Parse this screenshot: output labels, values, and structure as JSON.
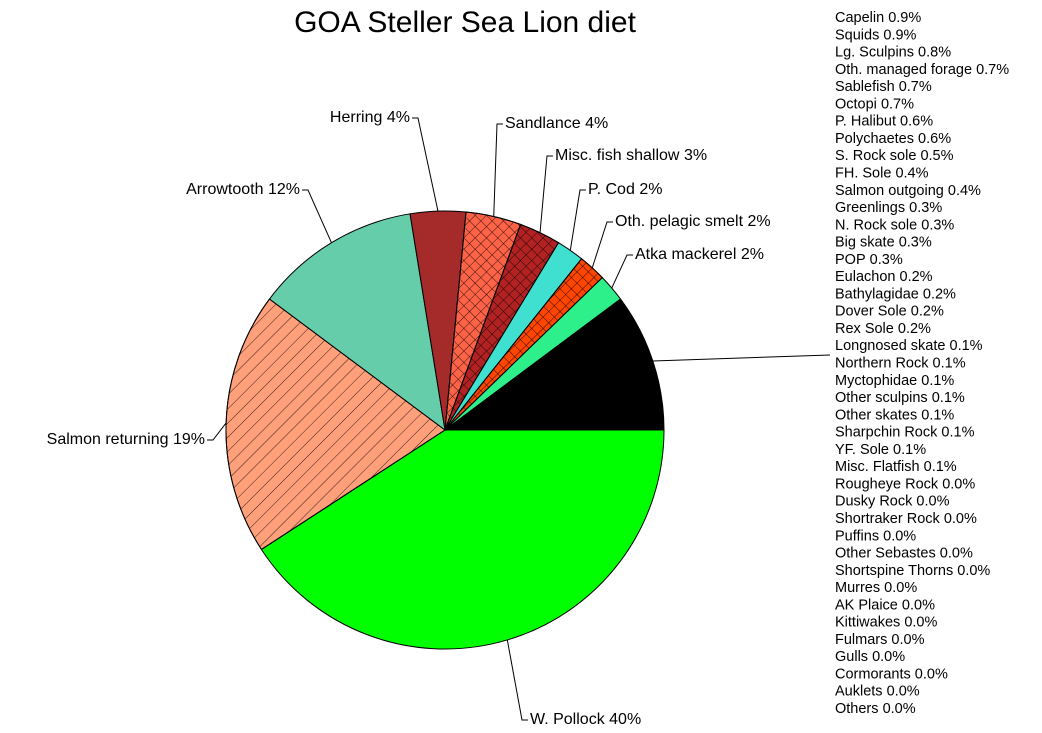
{
  "chart_data": {
    "type": "pie",
    "title": "GOA Steller Sea Lion diet",
    "categories": [
      "W. Pollock",
      "Salmon returning",
      "Arrowtooth",
      "Herring",
      "Sandlance",
      "Misc. fish shallow",
      "P. Cod",
      "Oth. pelagic smelt",
      "Atka mackerel"
    ],
    "values": [
      40,
      19,
      12,
      4,
      4,
      3,
      2,
      2,
      2
    ],
    "value_labels": [
      "40%",
      "19%",
      "12%",
      "4%",
      "4%",
      "3%",
      "2%",
      "2%",
      "2%"
    ],
    "colors": [
      "#00ff00",
      "#ffa07a",
      "#66cdaa",
      "#a52a2a",
      "#ff6347",
      "#b22222",
      "#40e0d0",
      "#ff4500",
      "#2ef08a"
    ],
    "hatch": [
      "solid",
      "diagonal",
      "solid",
      "solid",
      "cross",
      "cross",
      "solid",
      "cross",
      "solid"
    ],
    "other_color": "#000000",
    "other_categories": [
      "Capelin",
      "Squids",
      "Lg. Sculpins",
      "Oth. managed forage",
      "Sablefish",
      "Octopi",
      "P. Halibut",
      "Polychaetes",
      "S. Rock sole",
      "FH. Sole",
      "Salmon outgoing",
      "Greenlings",
      "N. Rock sole",
      "Big skate",
      "POP",
      "Eulachon",
      "Bathylagidae",
      "Dover Sole",
      "Rex Sole",
      "Longnosed skate",
      "Northern Rock",
      "Myctophidae",
      "Other sculpins",
      "Other skates",
      "Sharpchin Rock",
      "YF. Sole",
      "Misc. Flatfish",
      "Rougheye Rock",
      "Dusky Rock",
      "Shortraker Rock",
      "Puffins",
      "Other Sebastes",
      "Shortspine Thorns",
      "Murres",
      "AK Plaice",
      "Kittiwakes",
      "Fulmars",
      "Gulls",
      "Cormorants",
      "Auklets",
      "Others"
    ],
    "other_values": [
      0.9,
      0.9,
      0.8,
      0.7,
      0.7,
      0.7,
      0.6,
      0.6,
      0.5,
      0.4,
      0.4,
      0.3,
      0.3,
      0.3,
      0.3,
      0.2,
      0.2,
      0.2,
      0.2,
      0.1,
      0.1,
      0.1,
      0.1,
      0.1,
      0.1,
      0.1,
      0.1,
      0,
      0,
      0,
      0,
      0,
      0,
      0,
      0,
      0,
      0,
      0,
      0,
      0,
      0
    ],
    "other_value_labels": [
      "0.9%",
      "0.9%",
      "0.8%",
      "0.7%",
      "0.7%",
      "0.7%",
      "0.6%",
      "0.6%",
      "0.5%",
      "0.4%",
      "0.4%",
      "0.3%",
      "0.3%",
      "0.3%",
      "0.3%",
      "0.2%",
      "0.2%",
      "0.2%",
      "0.2%",
      "0.1%",
      "0.1%",
      "0.1%",
      "0.1%",
      "0.1%",
      "0.1%",
      "0.1%",
      "0.1%",
      "0.0%",
      "0.0%",
      "0.0%",
      "0.0%",
      "0.0%",
      "0.0%",
      "0.0%",
      "0.0%",
      "0.0%",
      "0.0%",
      "0.0%",
      "0.0%",
      "0.0%",
      "0.0%"
    ]
  }
}
